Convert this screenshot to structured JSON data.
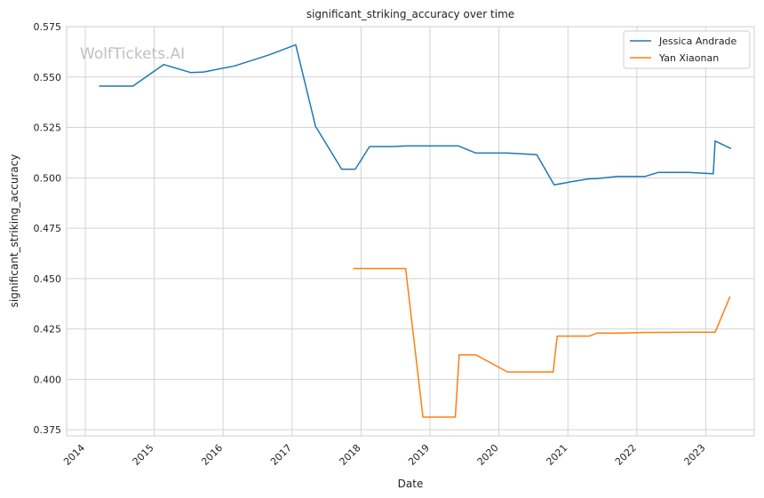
{
  "chart_data": {
    "type": "line",
    "title": "significant_striking_accuracy over time",
    "xlabel": "Date",
    "ylabel": "significant_striking_accuracy",
    "watermark": "WolfTickets.AI",
    "xlim": [
      "2013-09-24",
      "2023-09-15"
    ],
    "ylim": [
      0.372,
      0.575
    ],
    "y_ticks": [
      0.375,
      0.4,
      0.425,
      0.45,
      0.475,
      0.5,
      0.525,
      0.55,
      0.575
    ],
    "x_ticks": [
      "2014",
      "2015",
      "2016",
      "2017",
      "2018",
      "2019",
      "2020",
      "2021",
      "2022",
      "2023"
    ],
    "grid": true,
    "legend_position": "top-right",
    "series": [
      {
        "name": "Jessica Andrade",
        "color": "#1f77b4",
        "points": [
          [
            "2014-03-15",
            0.5455
          ],
          [
            "2014-09-10",
            0.5455
          ],
          [
            "2015-02-20",
            0.5562
          ],
          [
            "2015-07-15",
            0.5522
          ],
          [
            "2015-09-20",
            0.5525
          ],
          [
            "2016-03-01",
            0.5555
          ],
          [
            "2016-09-01",
            0.561
          ],
          [
            "2017-01-20",
            0.566
          ],
          [
            "2017-05-05",
            0.5255
          ],
          [
            "2017-09-20",
            0.5043
          ],
          [
            "2017-12-01",
            0.5043
          ],
          [
            "2018-02-15",
            0.5155
          ],
          [
            "2018-06-15",
            0.5155
          ],
          [
            "2018-09-01",
            0.5158
          ],
          [
            "2019-06-01",
            0.5158
          ],
          [
            "2019-09-01",
            0.5123
          ],
          [
            "2020-02-15",
            0.5123
          ],
          [
            "2020-07-20",
            0.5115
          ],
          [
            "2020-10-20",
            0.4965
          ],
          [
            "2021-01-15",
            0.498
          ],
          [
            "2021-04-20",
            0.4995
          ],
          [
            "2021-06-01",
            0.4996
          ],
          [
            "2021-09-20",
            0.5007
          ],
          [
            "2022-02-15",
            0.5007
          ],
          [
            "2022-04-25",
            0.5027
          ],
          [
            "2022-10-01",
            0.5027
          ],
          [
            "2023-02-10",
            0.502
          ],
          [
            "2023-02-20",
            0.5183
          ],
          [
            "2023-05-15",
            0.5145
          ]
        ]
      },
      {
        "name": "Yan Xiaonan",
        "color": "#ff7f0e",
        "points": [
          [
            "2017-11-20",
            0.455
          ],
          [
            "2018-08-25",
            0.455
          ],
          [
            "2018-11-25",
            0.3813
          ],
          [
            "2019-05-15",
            0.3813
          ],
          [
            "2019-06-05",
            0.4122
          ],
          [
            "2019-09-01",
            0.4122
          ],
          [
            "2020-02-15",
            0.4037
          ],
          [
            "2020-10-15",
            0.4037
          ],
          [
            "2020-11-05",
            0.4215
          ],
          [
            "2021-04-25",
            0.4215
          ],
          [
            "2021-06-05",
            0.423
          ],
          [
            "2021-10-01",
            0.423
          ],
          [
            "2022-03-01",
            0.4233
          ],
          [
            "2022-10-01",
            0.4234
          ],
          [
            "2023-02-20",
            0.4234
          ],
          [
            "2023-05-10",
            0.4412
          ]
        ]
      }
    ]
  }
}
